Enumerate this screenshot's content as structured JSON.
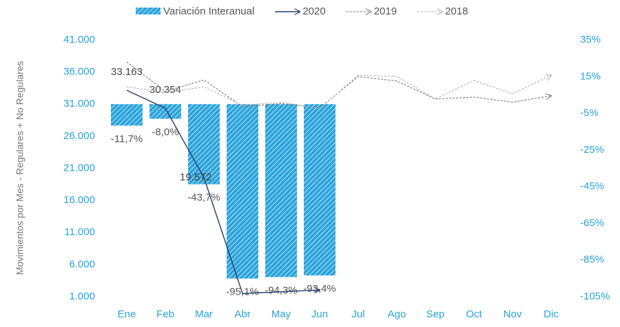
{
  "chart_data": {
    "type": "combo",
    "y_label": "Movimientos por Mes - Regulares + No Regulares",
    "categories": [
      "Ene",
      "Feb",
      "Mar",
      "Abr",
      "May",
      "Jun",
      "Jul",
      "Ago",
      "Sep",
      "Oct",
      "Nov",
      "Dic"
    ],
    "series": [
      {
        "name": "Variación Interanual",
        "type": "bar",
        "axis": "y2",
        "color": "#29a3dc",
        "values": [
          -11.7,
          -8.0,
          -43.7,
          -95.1,
          -94.3,
          -93.4,
          null,
          null,
          null,
          null,
          null,
          null
        ],
        "value_labels": [
          "-11,7%",
          "-8,0%",
          "-43,7%",
          "-95,1%",
          "-94,3%",
          "-93,4%",
          null,
          null,
          null,
          null,
          null,
          null
        ]
      },
      {
        "name": "2020",
        "type": "line",
        "color": "#1f3d6b",
        "dash": false,
        "values": [
          33163,
          30354,
          19572,
          1500,
          1770,
          2050,
          null,
          null,
          null,
          null,
          null,
          null
        ],
        "value_labels": [
          "33.163",
          "30.354",
          "19.572",
          null,
          null,
          null,
          null,
          null,
          null,
          null,
          null,
          null
        ]
      },
      {
        "name": "2019",
        "type": "line",
        "color": "#7a7a7a",
        "dash": true,
        "values": [
          37557,
          32993,
          34764,
          30600,
          31100,
          30400,
          35300,
          34600,
          31800,
          32100,
          31300,
          32300
        ]
      },
      {
        "name": "2018",
        "type": "line",
        "color": "#b0b0b0",
        "dash": true,
        "values": [
          33700,
          32800,
          33700,
          30800,
          31300,
          30300,
          35500,
          35300,
          31800,
          34700,
          32600,
          35500
        ]
      }
    ],
    "ylim": [
      1000,
      41000
    ],
    "yticks": [
      {
        "value": 1000,
        "label": "1.000"
      },
      {
        "value": 6000,
        "label": "6.000"
      },
      {
        "value": 11000,
        "label": "11.000"
      },
      {
        "value": 16000,
        "label": "16.000"
      },
      {
        "value": 21000,
        "label": "21.000"
      },
      {
        "value": 26000,
        "label": "26.000"
      },
      {
        "value": 31000,
        "label": "31.000"
      },
      {
        "value": 36000,
        "label": "36.000"
      },
      {
        "value": 41000,
        "label": "41.000"
      }
    ],
    "y2lim": [
      -105,
      35
    ],
    "y2ticks": [
      {
        "value": -105,
        "label": "-105%"
      },
      {
        "value": -85,
        "label": "-85%"
      },
      {
        "value": -65,
        "label": "-65%"
      },
      {
        "value": -45,
        "label": "-45%"
      },
      {
        "value": -25,
        "label": "-25%"
      },
      {
        "value": -5,
        "label": "-5%"
      },
      {
        "value": 15,
        "label": "15%"
      },
      {
        "value": 35,
        "label": "35%"
      }
    ]
  }
}
